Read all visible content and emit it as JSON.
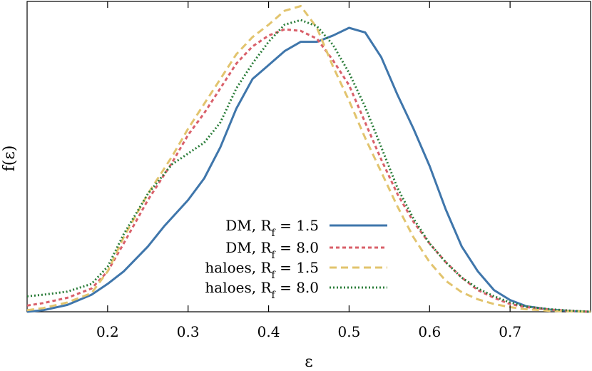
{
  "chart_data": {
    "type": "line",
    "title": "",
    "xlabel": "ε",
    "ylabel": "f(ε)",
    "xlim": [
      0.1,
      0.8
    ],
    "ylim": [
      0,
      1.0
    ],
    "x_ticks": [
      0.2,
      0.3,
      0.4,
      0.5,
      0.6,
      0.7
    ],
    "x_tick_labels": [
      "0.2",
      "0.3",
      "0.4",
      "0.5",
      "0.6",
      "0.7"
    ],
    "y_ticks_labeled": false,
    "grid": false,
    "legend_placement": "bottom-center",
    "series": [
      {
        "legend_main": "DM, R",
        "legend_sub": "f",
        "legend_tail": " = 1.5",
        "color": "#3f76ab",
        "style": "solid",
        "x": [
          0.1,
          0.12,
          0.15,
          0.18,
          0.2,
          0.22,
          0.25,
          0.27,
          0.3,
          0.32,
          0.34,
          0.36,
          0.38,
          0.4,
          0.42,
          0.44,
          0.46,
          0.48,
          0.5,
          0.52,
          0.54,
          0.56,
          0.58,
          0.6,
          0.62,
          0.64,
          0.66,
          0.68,
          0.7,
          0.72,
          0.75,
          0.78,
          0.8
        ],
        "y": [
          0.0,
          0.005,
          0.022,
          0.055,
          0.09,
          0.13,
          0.21,
          0.275,
          0.36,
          0.43,
          0.53,
          0.655,
          0.75,
          0.795,
          0.84,
          0.87,
          0.87,
          0.89,
          0.915,
          0.9,
          0.82,
          0.7,
          0.59,
          0.47,
          0.33,
          0.21,
          0.13,
          0.07,
          0.038,
          0.018,
          0.007,
          0.002,
          0.0
        ]
      },
      {
        "legend_main": "DM, R",
        "legend_sub": "f",
        "legend_tail": " = 8.0",
        "color": "#d9606a",
        "style": "dashed",
        "x": [
          0.1,
          0.12,
          0.15,
          0.18,
          0.2,
          0.22,
          0.25,
          0.28,
          0.3,
          0.32,
          0.34,
          0.36,
          0.38,
          0.4,
          0.42,
          0.44,
          0.46,
          0.48,
          0.5,
          0.52,
          0.54,
          0.56,
          0.58,
          0.6,
          0.62,
          0.64,
          0.66,
          0.68,
          0.7,
          0.72,
          0.75,
          0.78,
          0.8
        ],
        "y": [
          0.02,
          0.028,
          0.045,
          0.075,
          0.13,
          0.22,
          0.36,
          0.48,
          0.57,
          0.64,
          0.72,
          0.8,
          0.855,
          0.89,
          0.91,
          0.905,
          0.88,
          0.81,
          0.73,
          0.61,
          0.49,
          0.38,
          0.29,
          0.22,
          0.16,
          0.11,
          0.07,
          0.045,
          0.025,
          0.015,
          0.007,
          0.002,
          0.0
        ]
      },
      {
        "legend_main": "haloes, R",
        "legend_sub": "f",
        "legend_tail": " = 1.5",
        "color": "#e2c46e",
        "style": "dashed-long",
        "x": [
          0.1,
          0.12,
          0.15,
          0.18,
          0.2,
          0.22,
          0.25,
          0.28,
          0.3,
          0.32,
          0.34,
          0.36,
          0.38,
          0.4,
          0.42,
          0.44,
          0.46,
          0.48,
          0.5,
          0.52,
          0.54,
          0.56,
          0.58,
          0.6,
          0.62,
          0.64,
          0.66,
          0.68,
          0.7,
          0.72,
          0.75,
          0.78,
          0.8
        ],
        "y": [
          0.005,
          0.012,
          0.03,
          0.06,
          0.13,
          0.24,
          0.38,
          0.5,
          0.59,
          0.67,
          0.75,
          0.83,
          0.885,
          0.925,
          0.97,
          0.985,
          0.915,
          0.79,
          0.68,
          0.56,
          0.45,
          0.34,
          0.24,
          0.16,
          0.1,
          0.063,
          0.04,
          0.025,
          0.015,
          0.008,
          0.003,
          0.001,
          0.0
        ]
      },
      {
        "legend_main": "haloes, R",
        "legend_sub": "f",
        "legend_tail": " = 8.0",
        "color": "#2b7d3a",
        "style": "dotted",
        "x": [
          0.1,
          0.12,
          0.15,
          0.18,
          0.2,
          0.22,
          0.25,
          0.28,
          0.3,
          0.32,
          0.34,
          0.36,
          0.38,
          0.4,
          0.42,
          0.44,
          0.46,
          0.48,
          0.5,
          0.52,
          0.54,
          0.56,
          0.58,
          0.6,
          0.62,
          0.64,
          0.66,
          0.68,
          0.7,
          0.72,
          0.75,
          0.78,
          0.8
        ],
        "y": [
          0.05,
          0.055,
          0.065,
          0.09,
          0.145,
          0.25,
          0.38,
          0.475,
          0.51,
          0.545,
          0.61,
          0.72,
          0.8,
          0.87,
          0.925,
          0.94,
          0.92,
          0.86,
          0.77,
          0.66,
          0.53,
          0.4,
          0.3,
          0.22,
          0.16,
          0.11,
          0.075,
          0.05,
          0.03,
          0.017,
          0.008,
          0.003,
          0.0
        ]
      }
    ]
  }
}
